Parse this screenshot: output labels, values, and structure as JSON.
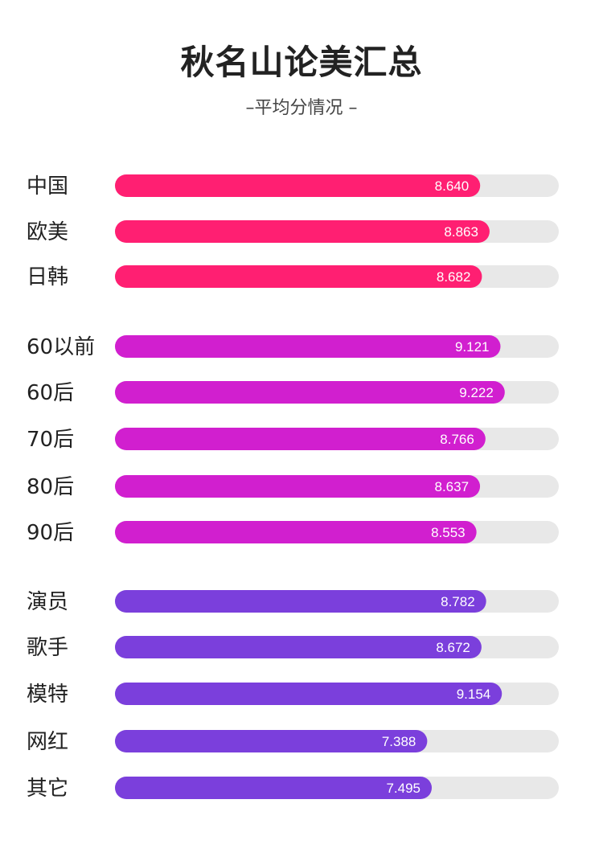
{
  "header": {
    "title": "秋名山论美汇总",
    "subtitle": "–平均分情况 –"
  },
  "chart_data": {
    "type": "bar",
    "orientation": "horizontal",
    "title": "秋名山论美汇总",
    "subtitle": "–平均分情况 –",
    "xlim": [
      0,
      10.5
    ],
    "track_color": "#e8e8e8",
    "groups": [
      {
        "color": "#ff1f72",
        "categories": [
          "中国",
          "欧美",
          "日韩"
        ],
        "values": [
          8.64,
          8.863,
          8.682
        ],
        "value_labels": [
          "8.640",
          "8.863",
          "8.682"
        ]
      },
      {
        "color": "#d11fcf",
        "categories": [
          "60以前",
          "60后",
          "70后",
          "80后",
          "90后"
        ],
        "values": [
          9.121,
          9.222,
          8.766,
          8.637,
          8.553
        ],
        "value_labels": [
          "9.121",
          "9.222",
          "8.766",
          "8.637",
          "8.553"
        ]
      },
      {
        "color": "#7b3fdc",
        "categories": [
          "演员",
          "歌手",
          "模特",
          "网红",
          "其它"
        ],
        "values": [
          8.782,
          8.672,
          9.154,
          7.388,
          7.495
        ],
        "value_labels": [
          "8.782",
          "8.672",
          "9.154",
          "7.388",
          "7.495"
        ]
      }
    ]
  }
}
